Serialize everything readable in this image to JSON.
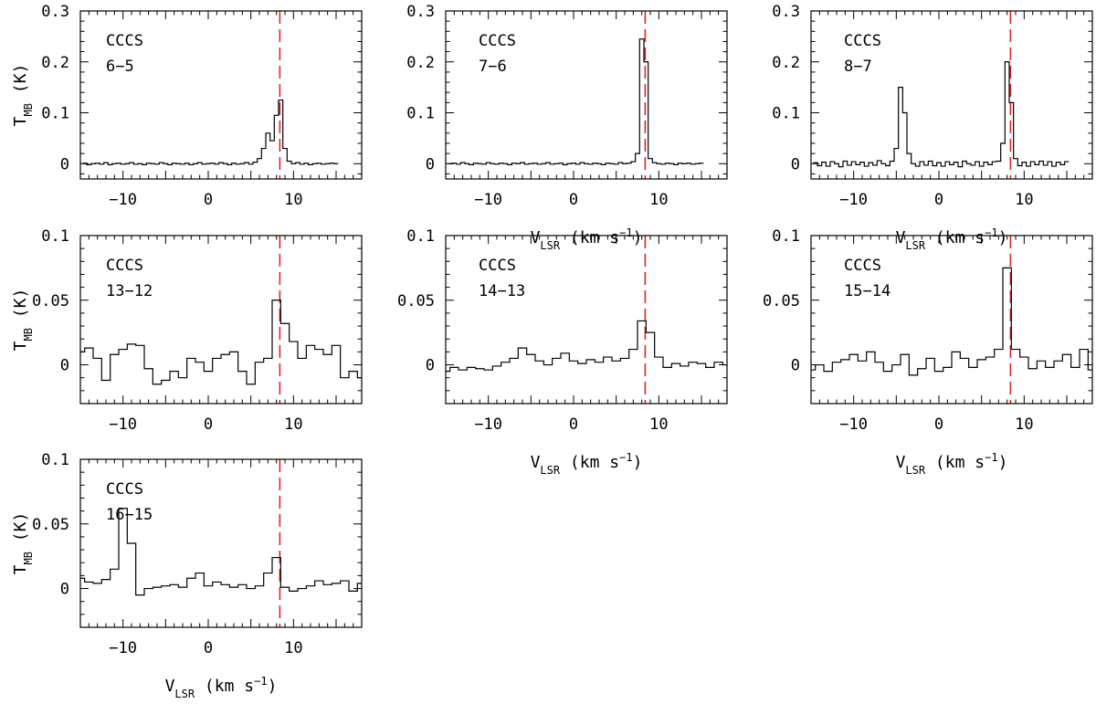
{
  "chart_data": [
    {
      "type": "line",
      "step": true,
      "molecule": "CCCS",
      "transition": "6−5",
      "xlim": [
        -15,
        18
      ],
      "ylim": [
        -0.03,
        0.3
      ],
      "xticks": [
        -10,
        0,
        10
      ],
      "yticks": [
        0,
        0.1,
        0.2,
        0.3
      ],
      "xlabel": "",
      "ylabel": "T_MB (K)",
      "ref_line_x": 8.4,
      "series": [
        {
          "x": [
            -14.5,
            -14.0,
            -13.5,
            -13.0,
            -12.5,
            -12.0,
            -11.5,
            -11.0,
            -10.5,
            -10.0,
            -9.5,
            -9.0,
            -8.5,
            -8.0,
            -7.5,
            -7.0,
            -6.5,
            -6.0,
            -5.5,
            -5.0,
            -4.5,
            -4.0,
            -3.5,
            -3.0,
            -2.5,
            -2.0,
            -1.5,
            -1.0,
            -0.5,
            0.0,
            0.5,
            1.0,
            1.5,
            2.0,
            2.5,
            3.0,
            3.5,
            4.0,
            4.5,
            5.0,
            5.5,
            6.0,
            6.5,
            7.0,
            7.5,
            8.0,
            8.5,
            9.0,
            9.5,
            10.0,
            10.5,
            11.0,
            11.5,
            12.0,
            12.5,
            13.0,
            13.5,
            14.0,
            14.5,
            15.0
          ],
          "y": [
            0.001,
            -0.002,
            0.0,
            0.001,
            -0.001,
            0.002,
            -0.002,
            0.0,
            0.001,
            -0.001,
            0.0,
            0.002,
            -0.001,
            0.0,
            -0.002,
            0.001,
            0.0,
            -0.001,
            0.002,
            0.0,
            -0.002,
            0.001,
            0.0,
            -0.001,
            0.001,
            -0.002,
            0.0,
            0.002,
            -0.001,
            0.0,
            0.001,
            -0.001,
            0.002,
            0.0,
            -0.002,
            0.001,
            -0.001,
            0.0,
            0.002,
            -0.001,
            0.003,
            0.01,
            0.03,
            0.06,
            0.045,
            0.095,
            0.125,
            0.03,
            0.005,
            0.0,
            0.002,
            -0.001,
            0.001,
            -0.002,
            0.0,
            0.001,
            -0.001,
            0.0,
            0.001,
            0.0
          ]
        }
      ]
    },
    {
      "type": "line",
      "step": true,
      "molecule": "CCCS",
      "transition": "7−6",
      "xlim": [
        -15,
        18
      ],
      "ylim": [
        -0.03,
        0.3
      ],
      "xticks": [
        -10,
        0,
        10
      ],
      "yticks": [
        0,
        0.1,
        0.2,
        0.3
      ],
      "xlabel": "V_LSR (km s^-1)",
      "ylabel": "",
      "ref_line_x": 8.4,
      "series": [
        {
          "x": [
            -14.5,
            -14.0,
            -13.5,
            -13.0,
            -12.5,
            -12.0,
            -11.5,
            -11.0,
            -10.5,
            -10.0,
            -9.5,
            -9.0,
            -8.5,
            -8.0,
            -7.5,
            -7.0,
            -6.5,
            -6.0,
            -5.5,
            -5.0,
            -4.5,
            -4.0,
            -3.5,
            -3.0,
            -2.5,
            -2.0,
            -1.5,
            -1.0,
            -0.5,
            0.0,
            0.5,
            1.0,
            1.5,
            2.0,
            2.5,
            3.0,
            3.5,
            4.0,
            4.5,
            5.0,
            5.5,
            6.0,
            6.5,
            7.0,
            7.5,
            8.0,
            8.5,
            9.0,
            9.5,
            10.0,
            10.5,
            11.0,
            11.5,
            12.0,
            12.5,
            13.0,
            13.5,
            14.0,
            14.5,
            15.0
          ],
          "y": [
            0.0,
            0.001,
            -0.001,
            0.002,
            0.0,
            -0.002,
            0.001,
            0.0,
            -0.001,
            0.002,
            0.0,
            -0.001,
            0.001,
            0.0,
            -0.002,
            0.001,
            0.0,
            0.002,
            -0.001,
            0.0,
            0.001,
            -0.001,
            0.0,
            0.002,
            -0.001,
            0.0,
            0.001,
            -0.002,
            0.0,
            0.001,
            -0.001,
            0.002,
            0.0,
            -0.001,
            0.001,
            0.0,
            -0.002,
            0.001,
            0.0,
            -0.001,
            0.002,
            0.0,
            0.001,
            0.004,
            0.02,
            0.245,
            0.2,
            0.01,
            0.002,
            0.0,
            -0.001,
            0.001,
            0.0,
            -0.002,
            0.001,
            0.0,
            0.001,
            -0.001,
            0.0,
            0.001
          ]
        }
      ]
    },
    {
      "type": "line",
      "step": true,
      "molecule": "CCCS",
      "transition": "8−7",
      "xlim": [
        -15,
        18
      ],
      "ylim": [
        -0.03,
        0.3
      ],
      "xticks": [
        -10,
        0,
        10
      ],
      "yticks": [
        0,
        0.1,
        0.2,
        0.3
      ],
      "xlabel": "V_LSR (km s^-1)",
      "ylabel": "",
      "ref_line_x": 8.4,
      "series": [
        {
          "x": [
            -14.5,
            -14.0,
            -13.5,
            -13.0,
            -12.5,
            -12.0,
            -11.5,
            -11.0,
            -10.5,
            -10.0,
            -9.5,
            -9.0,
            -8.5,
            -8.0,
            -7.5,
            -7.0,
            -6.5,
            -6.0,
            -5.5,
            -5.0,
            -4.5,
            -4.0,
            -3.5,
            -3.0,
            -2.5,
            -2.0,
            -1.5,
            -1.0,
            -0.5,
            0.0,
            0.5,
            1.0,
            1.5,
            2.0,
            2.5,
            3.0,
            3.5,
            4.0,
            4.5,
            5.0,
            5.5,
            6.0,
            6.5,
            7.0,
            7.5,
            8.0,
            8.5,
            9.0,
            9.5,
            10.0,
            10.5,
            11.0,
            11.5,
            12.0,
            12.5,
            13.0,
            13.5,
            14.0,
            14.5,
            15.0
          ],
          "y": [
            0.002,
            -0.004,
            0.003,
            -0.005,
            0.004,
            0.0,
            -0.006,
            0.005,
            -0.003,
            0.004,
            -0.002,
            0.003,
            -0.005,
            0.002,
            -0.003,
            0.006,
            0.0,
            -0.004,
            0.005,
            0.03,
            0.15,
            0.1,
            0.02,
            0.0,
            -0.005,
            0.004,
            -0.003,
            0.005,
            -0.004,
            0.002,
            -0.005,
            0.004,
            -0.002,
            0.003,
            -0.006,
            0.005,
            0.0,
            -0.003,
            0.004,
            -0.005,
            0.003,
            -0.002,
            0.004,
            0.005,
            0.04,
            0.2,
            0.12,
            0.01,
            -0.004,
            0.003,
            -0.005,
            0.004,
            -0.002,
            0.005,
            -0.003,
            0.004,
            -0.005,
            0.003,
            -0.002,
            0.004
          ]
        }
      ]
    },
    {
      "type": "line",
      "step": true,
      "molecule": "CCCS",
      "transition": "13−12",
      "xlim": [
        -15,
        18
      ],
      "ylim": [
        -0.03,
        0.1
      ],
      "xticks": [
        -10,
        0,
        10
      ],
      "yticks": [
        0,
        0.05,
        0.1
      ],
      "xlabel": "",
      "ylabel": "T_MB (K)",
      "ref_line_x": 8.4,
      "series": [
        {
          "x": [
            -15,
            -14,
            -13,
            -12,
            -11,
            -10,
            -9,
            -8,
            -7,
            -6,
            -5,
            -4,
            -3,
            -2,
            -1,
            0,
            1,
            2,
            3,
            4,
            5,
            6,
            7,
            8,
            9,
            10,
            11,
            12,
            13,
            14,
            15,
            16,
            17,
            18
          ],
          "y": [
            0.01,
            0.013,
            0.005,
            -0.012,
            0.008,
            0.012,
            0.016,
            0.015,
            -0.003,
            -0.015,
            -0.012,
            -0.005,
            -0.01,
            0.005,
            0.002,
            -0.005,
            0.005,
            0.008,
            0.01,
            -0.005,
            -0.015,
            0.002,
            0.005,
            0.05,
            0.032,
            0.018,
            0.005,
            0.015,
            0.012,
            0.008,
            0.015,
            -0.01,
            -0.005,
            -0.01
          ]
        }
      ]
    },
    {
      "type": "line",
      "step": true,
      "molecule": "CCCS",
      "transition": "14−13",
      "xlim": [
        -15,
        18
      ],
      "ylim": [
        -0.03,
        0.1
      ],
      "xticks": [
        -10,
        0,
        10
      ],
      "yticks": [
        0,
        0.05,
        0.1
      ],
      "xlabel": "V_LSR (km s^-1)",
      "ylabel": "",
      "ref_line_x": 8.4,
      "series": [
        {
          "x": [
            -15,
            -14,
            -13,
            -12,
            -11,
            -10,
            -9,
            -8,
            -7,
            -6,
            -5,
            -4,
            -3,
            -2,
            -1,
            0,
            1,
            2,
            3,
            4,
            5,
            6,
            7,
            8,
            9,
            10,
            11,
            12,
            13,
            14,
            15,
            16,
            17,
            18
          ],
          "y": [
            -0.005,
            -0.002,
            -0.004,
            -0.002,
            -0.003,
            -0.004,
            -0.001,
            0.002,
            0.005,
            0.013,
            0.008,
            0.003,
            0.0,
            0.005,
            0.009,
            0.003,
            0.001,
            0.004,
            0.002,
            0.006,
            0.003,
            0.005,
            0.012,
            0.034,
            0.025,
            0.006,
            -0.002,
            0.001,
            -0.001,
            0.002,
            0.001,
            -0.002,
            0.002,
            0.0
          ]
        }
      ]
    },
    {
      "type": "line",
      "step": true,
      "molecule": "CCCS",
      "transition": "15−14",
      "xlim": [
        -15,
        18
      ],
      "ylim": [
        -0.03,
        0.1
      ],
      "xticks": [
        -10,
        0,
        10
      ],
      "yticks": [
        0,
        0.05,
        0.1
      ],
      "xlabel": "V_LSR (km s^-1)",
      "ylabel": "",
      "ref_line_x": 8.4,
      "series": [
        {
          "x": [
            -15,
            -14,
            -13,
            -12,
            -11,
            -10,
            -9,
            -8,
            -7,
            -6,
            -5,
            -4,
            -3,
            -2,
            -1,
            0,
            1,
            2,
            3,
            4,
            5,
            6,
            7,
            8,
            9,
            10,
            11,
            12,
            13,
            14,
            15,
            16,
            17,
            18
          ],
          "y": [
            -0.004,
            0.0,
            -0.005,
            0.002,
            0.004,
            0.008,
            0.003,
            0.01,
            0.002,
            -0.005,
            0.0,
            0.008,
            -0.008,
            -0.003,
            0.005,
            -0.005,
            -0.002,
            0.01,
            0.005,
            -0.002,
            0.004,
            0.006,
            0.012,
            0.075,
            0.012,
            0.006,
            -0.003,
            0.003,
            -0.002,
            0.003,
            0.008,
            -0.002,
            0.012,
            -0.004
          ]
        }
      ]
    },
    {
      "type": "line",
      "step": true,
      "molecule": "CCCS",
      "transition": "16−15",
      "xlim": [
        -15,
        18
      ],
      "ylim": [
        -0.03,
        0.1
      ],
      "xticks": [
        -10,
        0,
        10
      ],
      "yticks": [
        0,
        0.05,
        0.1
      ],
      "xlabel": "V_LSR (km s^-1)",
      "ylabel": "T_MB (K)",
      "ref_line_x": 8.4,
      "series": [
        {
          "x": [
            -15,
            -14,
            -13,
            -12,
            -11,
            -10,
            -9,
            -8,
            -7,
            -6,
            -5,
            -4,
            -3,
            -2,
            -1,
            0,
            1,
            2,
            3,
            4,
            5,
            6,
            7,
            8,
            9,
            10,
            11,
            12,
            13,
            14,
            15,
            16,
            17,
            18
          ],
          "y": [
            0.008,
            0.005,
            0.004,
            0.007,
            0.015,
            0.062,
            0.035,
            -0.005,
            0.0,
            0.001,
            0.002,
            0.003,
            0.001,
            0.008,
            0.012,
            0.002,
            0.005,
            0.003,
            0.001,
            0.003,
            0.0,
            0.002,
            0.012,
            0.024,
            0.001,
            -0.002,
            0.0,
            0.002,
            0.006,
            0.003,
            0.004,
            0.006,
            -0.002,
            0.004
          ]
        }
      ]
    }
  ],
  "colors": {
    "axes": "#000000",
    "spectrum": "#000000",
    "reference_line": "#d62728"
  }
}
